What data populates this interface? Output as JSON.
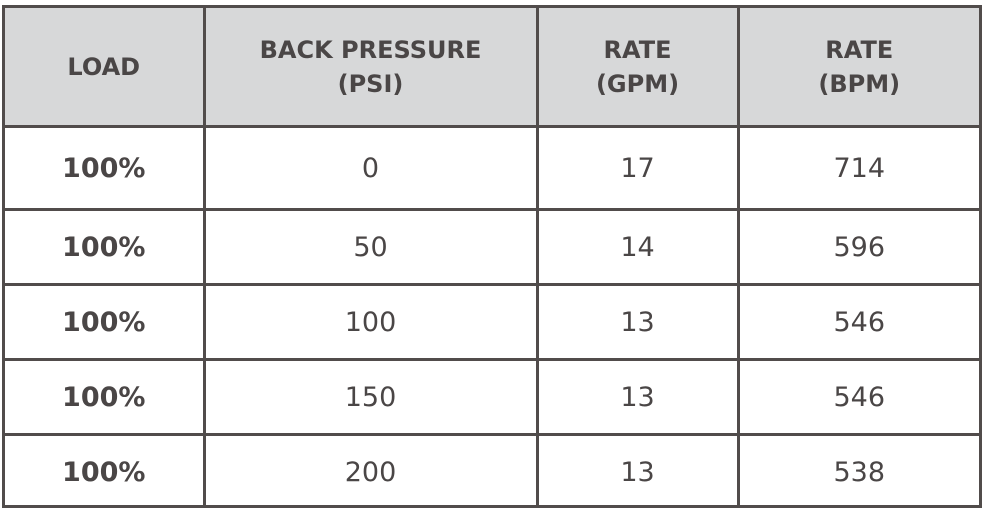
{
  "table": {
    "headers": [
      {
        "line1": "LOAD",
        "line2": ""
      },
      {
        "line1": "BACK PRESSURE",
        "line2": "(PSI)"
      },
      {
        "line1": "RATE",
        "line2": "(GPM)"
      },
      {
        "line1": "RATE",
        "line2": "(BPM)"
      }
    ],
    "rows": [
      {
        "load": "100%",
        "back_pressure": "0",
        "rate_gpm": "17",
        "rate_bpm": "714"
      },
      {
        "load": "100%",
        "back_pressure": "50",
        "rate_gpm": "14",
        "rate_bpm": "596"
      },
      {
        "load": "100%",
        "back_pressure": "100",
        "rate_gpm": "13",
        "rate_bpm": "546"
      },
      {
        "load": "100%",
        "back_pressure": "150",
        "rate_gpm": "13",
        "rate_bpm": "546"
      },
      {
        "load": "100%",
        "back_pressure": "200",
        "rate_gpm": "13",
        "rate_bpm": "538"
      }
    ]
  },
  "colors": {
    "header_bg": "#d7d8d9",
    "border": "#514c4b",
    "text": "#4a4646"
  }
}
